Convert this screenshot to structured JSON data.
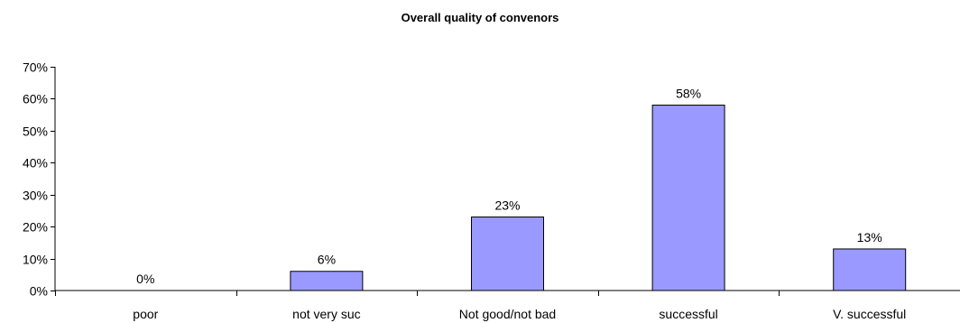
{
  "chart_data": {
    "type": "bar",
    "title": "Overall quality of convenors",
    "categories": [
      "poor",
      "not very suc",
      "Not good/not bad",
      "successful",
      "V. successful"
    ],
    "values": [
      0,
      6,
      23,
      58,
      13
    ],
    "data_labels": [
      "0%",
      "6%",
      "23%",
      "58%",
      "13%"
    ],
    "ylim": [
      0,
      70
    ],
    "yticks": [
      0,
      10,
      20,
      30,
      40,
      50,
      60,
      70
    ],
    "ytick_labels": [
      "0%",
      "10%",
      "20%",
      "30%",
      "40%",
      "50%",
      "60%",
      "70%"
    ],
    "xlabel": "",
    "ylabel": "",
    "grid": false,
    "legend": "none",
    "bar_color": "#9999ff",
    "bar_edge_color": "#000000"
  }
}
